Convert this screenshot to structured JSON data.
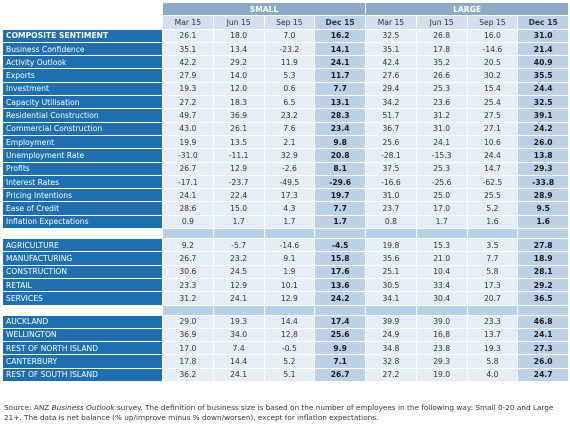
{
  "header": {
    "small": "SMALL",
    "large": "LARGE",
    "periods": [
      "Mar 15",
      "Jun 15",
      "Sep 15",
      "Dec 15",
      "Mar 15",
      "Jun 15",
      "Sep 15",
      "Dec 15"
    ]
  },
  "sections": [
    {
      "rows": [
        {
          "label": "COMPOSITE SENTIMENT",
          "bold": true,
          "values": [
            "26.1",
            "18.0",
            "7.0",
            "16.2",
            "32.5",
            "26.8",
            "16.0",
            "31.0"
          ]
        },
        {
          "label": "Business Confidence",
          "values": [
            "35.1",
            "13.4",
            "-23.2",
            "14.1",
            "35.1",
            "17.8",
            "-14.6",
            "21.4"
          ]
        },
        {
          "label": "Activity Outlook",
          "values": [
            "42.2",
            "29.2",
            "11.9",
            "24.1",
            "42.4",
            "35.2",
            "20.5",
            "40.9"
          ]
        },
        {
          "label": "Exports",
          "values": [
            "27.9",
            "14.0",
            "5.3",
            "11.7",
            "27.6",
            "26.6",
            "30.2",
            "35.5"
          ]
        },
        {
          "label": "Investment",
          "values": [
            "19.3",
            "12.0",
            "0.6",
            "7.7",
            "29.4",
            "25.3",
            "15.4",
            "24.4"
          ]
        },
        {
          "label": "Capacity Utilisation",
          "values": [
            "27.2",
            "18.3",
            "6.5",
            "13.1",
            "34.2",
            "23.6",
            "25.4",
            "32.5"
          ]
        },
        {
          "label": "Residential Construction",
          "values": [
            "49.7",
            "36.9",
            "23.2",
            "28.3",
            "51.7",
            "31.2",
            "27.5",
            "39.1"
          ]
        },
        {
          "label": "Commercial Construction",
          "values": [
            "43.0",
            "26.1",
            "7.6",
            "23.4",
            "36.7",
            "31.0",
            "27.1",
            "24.2"
          ]
        },
        {
          "label": "Employment",
          "values": [
            "19.9",
            "13.5",
            "2.1",
            "9.8",
            "25.6",
            "24.1",
            "10.6",
            "26.0"
          ]
        },
        {
          "label": "Unemployment Rate",
          "values": [
            "-31.0",
            "-11.1",
            "32.9",
            "20.8",
            "-28.1",
            "-15.3",
            "24.4",
            "13.8"
          ]
        },
        {
          "label": "Profits",
          "values": [
            "26.7",
            "12.9",
            "-2.6",
            "8.1",
            "37.5",
            "25.3",
            "14.7",
            "29.3"
          ]
        },
        {
          "label": "Interest Rates",
          "values": [
            "-17.1",
            "-23.7",
            "-49.5",
            "-29.6",
            "-16.6",
            "-25.6",
            "-62.5",
            "-33.8"
          ]
        },
        {
          "label": "Pricing Intentions",
          "values": [
            "24.1",
            "22.4",
            "17.3",
            "19.7",
            "31.0",
            "25.0",
            "25.5",
            "28.9"
          ]
        },
        {
          "label": "Ease of Credit",
          "values": [
            "28.6",
            "15.0",
            "4.3",
            "7.7",
            "23.7",
            "17.0",
            "5.2",
            "9.5"
          ]
        },
        {
          "label": "Inflation Expectations",
          "values": [
            "0.9",
            "1.7",
            "1.7",
            "1.7",
            "0.8",
            "1.7",
            "1.6",
            "1.6"
          ]
        }
      ]
    },
    {
      "rows": [
        {
          "label": "AGRICULTURE",
          "values": [
            "9.2",
            "-5.7",
            "-14.6",
            "-4.5",
            "19.8",
            "15.3",
            "3.5",
            "27.8"
          ]
        },
        {
          "label": "MANUFACTURING",
          "values": [
            "26.7",
            "23.2",
            "9.1",
            "15.8",
            "35.6",
            "21.0",
            "7.7",
            "18.9"
          ]
        },
        {
          "label": "CONSTRUCTION",
          "values": [
            "30.6",
            "24.5",
            "1.9",
            "17.6",
            "25.1",
            "10.4",
            "5.8",
            "28.1"
          ]
        },
        {
          "label": "RETAIL",
          "values": [
            "23.3",
            "12.9",
            "10.1",
            "13.6",
            "30.5",
            "33.4",
            "17.3",
            "29.2"
          ]
        },
        {
          "label": "SERVICES",
          "values": [
            "31.2",
            "24.1",
            "12.9",
            "24.2",
            "34.1",
            "30.4",
            "20.7",
            "36.5"
          ]
        }
      ]
    },
    {
      "rows": [
        {
          "label": "AUCKLAND",
          "values": [
            "29.0",
            "19.3",
            "14.4",
            "17.4",
            "39.9",
            "39.0",
            "23.3",
            "46.8"
          ]
        },
        {
          "label": "WELLINGTON",
          "values": [
            "36.9",
            "34.0",
            "12.8",
            "25.6",
            "24.9",
            "16.8",
            "13.7",
            "24.1"
          ]
        },
        {
          "label": "REST OF NORTH ISLAND",
          "values": [
            "17.0",
            "7.4",
            "-0.5",
            "9.9",
            "34.8",
            "23.8",
            "19.3",
            "27.3"
          ]
        },
        {
          "label": "CANTERBURY",
          "values": [
            "17.8",
            "14.4",
            "5.2",
            "7.1",
            "32.8",
            "29.3",
            "5.8",
            "26.0"
          ]
        },
        {
          "label": "REST OF SOUTH ISLAND",
          "values": [
            "36.2",
            "24.1",
            "5.1",
            "26.7",
            "27.2",
            "19.0",
            "4.0",
            "24.7"
          ]
        }
      ]
    }
  ],
  "footer": {
    "part1": "Source: ANZ ",
    "italic": "Business Outlook",
    "part2": " survey. The definition of business size is based on the number of employees in the following way: Small 0-20 and Large 21+. The data is net balance (% up/improve minus % down/worsen), except for inflation expectations."
  }
}
